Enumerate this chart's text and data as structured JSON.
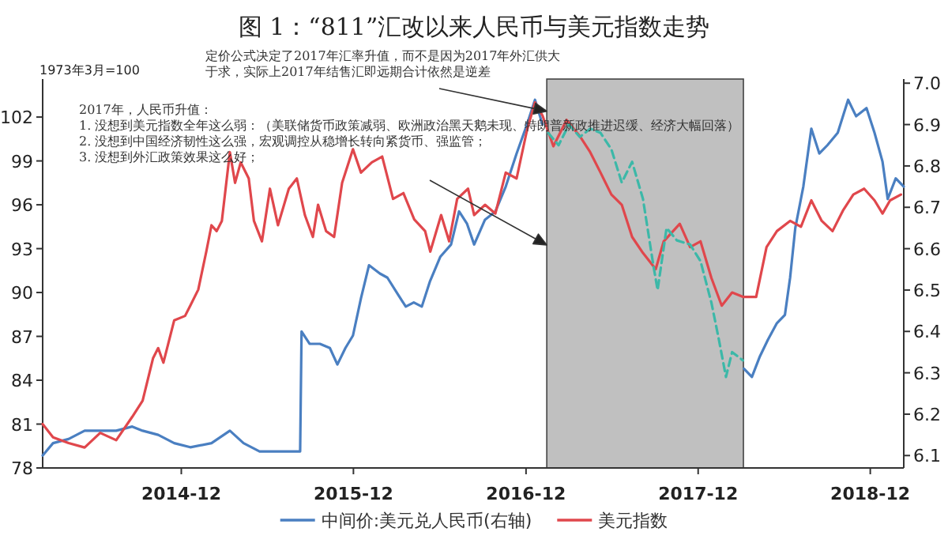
{
  "chart_data": {
    "type": "line",
    "title": "图 1：“811”汇改以来人民币与美元指数走势",
    "ylabel": "1973年3月=100",
    "xlim": [
      "2014-02-10",
      "2019-02-10"
    ],
    "xticks": [
      "2014-12",
      "2015-12",
      "2016-12",
      "2017-12",
      "2018-12"
    ],
    "ylim": [
      78,
      104.6
    ],
    "yticks": [
      78,
      81,
      84,
      87,
      90,
      93,
      96,
      99,
      102
    ],
    "y2lim": [
      6.07,
      7.01
    ],
    "y2ticks": [
      6.1,
      6.2,
      6.3,
      6.4,
      6.5,
      6.6,
      6.7,
      6.8,
      6.9,
      {
        "value": 7,
        "label": "7.0"
      }
    ],
    "legend": "bottom",
    "marker": "none",
    "grid": false,
    "bands": [
      {
        "axis": "x",
        "from": "2017-01-14",
        "to": "2018-03-07",
        "color": "#c0c0c0"
      }
    ],
    "annotations": [
      {
        "text": "定价公式决定了2017年汇率升值，而不是因为2017年外汇供大于求，实际上2017年结售汇即远期合计依然是逆差",
        "x": "2017-01-14",
        "y": 102.4
      },
      "2017年，人民币升值：",
      "1. 没想到美元指数全年这么弱：（美联储货币政策减弱、欧洲政治黑天鹅未现、特朗普新政推进迟缓、经济大幅回落）",
      "2. 没想到中国经济韧性这么强，宏观调控从稳增长转向紧货币、强监管；",
      "3. 没想到外汇政策效果这么好；"
    ],
    "series": [
      {
        "name": "中间价:美元兑人民币(右轴)",
        "color": "#4a7fc1",
        "axis": "y2",
        "line_style": "solid",
        "x": [
          "2014-02-10",
          "2014-03-04",
          "2014-04-06",
          "2014-05-10",
          "2014-06-12",
          "2014-07-16",
          "2014-08-19",
          "2014-09-10",
          "2014-10-13",
          "2014-11-16",
          "2014-12-20",
          "2015-02-03",
          "2015-03-14",
          "2015-04-12",
          "2015-05-16",
          "2015-06-18",
          "2015-08-10",
          "2015-08-13",
          "2015-08-30",
          "2015-09-21",
          "2015-10-12",
          "2015-10-28",
          "2015-11-14",
          "2015-11-30",
          "2015-12-17",
          "2016-01-03",
          "2016-01-26",
          "2016-02-11",
          "2016-03-04",
          "2016-03-21",
          "2016-04-07",
          "2016-04-24",
          "2016-05-11",
          "2016-06-02",
          "2016-06-25",
          "2016-07-12",
          "2016-07-29",
          "2016-08-13",
          "2016-09-05",
          "2016-09-27",
          "2016-10-19",
          "2016-11-11",
          "2016-12-03",
          "2016-12-20",
          "2017-01-05",
          "2017-01-14",
          "2018-03-07",
          "2018-03-08",
          "2018-03-25",
          "2018-04-11",
          "2018-04-28",
          "2018-05-17",
          "2018-06-03",
          "2018-06-14",
          "2018-06-25",
          "2018-07-12",
          "2018-07-29",
          "2018-08-15",
          "2018-09-01",
          "2018-09-23",
          "2018-10-15",
          "2018-11-01",
          "2018-11-23",
          "2018-12-10",
          "2018-12-27",
          "2019-01-07",
          "2019-01-24",
          "2019-02-10"
        ],
        "values": [
          6.1,
          6.13,
          6.14,
          6.16,
          6.16,
          6.16,
          6.17,
          6.16,
          6.15,
          6.13,
          6.12,
          6.13,
          6.16,
          6.13,
          6.11,
          6.11,
          6.11,
          6.4,
          6.37,
          6.37,
          6.36,
          6.32,
          6.36,
          6.39,
          6.48,
          6.56,
          6.54,
          6.53,
          6.49,
          6.46,
          6.47,
          6.46,
          6.52,
          6.58,
          6.61,
          6.69,
          6.66,
          6.61,
          6.67,
          6.69,
          6.75,
          6.83,
          6.9,
          6.96,
          6.9,
          null,
          null,
          6.31,
          6.29,
          6.34,
          6.38,
          6.42,
          6.44,
          6.53,
          6.65,
          6.75,
          6.89,
          6.83,
          6.85,
          6.88,
          6.96,
          6.92,
          6.94,
          6.88,
          6.81,
          6.72,
          6.77,
          6.75
        ]
      },
      {
        "name": "美元指数",
        "color": "#e0474c",
        "axis": "y",
        "line_style": "solid",
        "x": [
          "2014-02-10",
          "2014-03-04",
          "2014-04-06",
          "2014-05-10",
          "2014-06-12",
          "2014-07-16",
          "2014-08-19",
          "2014-09-10",
          "2014-10-02",
          "2014-10-13",
          "2014-10-24",
          "2014-11-16",
          "2014-12-09",
          "2014-12-20",
          "2015-01-06",
          "2015-01-23",
          "2015-02-03",
          "2015-02-14",
          "2015-02-25",
          "2015-03-14",
          "2015-03-25",
          "2015-04-06",
          "2015-04-23",
          "2015-05-04",
          "2015-05-21",
          "2015-06-07",
          "2015-06-24",
          "2015-07-17",
          "2015-08-03",
          "2015-08-20",
          "2015-09-06",
          "2015-09-17",
          "2015-10-04",
          "2015-10-21",
          "2015-11-07",
          "2015-11-30",
          "2015-12-17",
          "2016-01-09",
          "2016-01-31",
          "2016-02-23",
          "2016-03-16",
          "2016-04-08",
          "2016-05-01",
          "2016-05-12",
          "2016-06-04",
          "2016-06-21",
          "2016-07-08",
          "2016-07-31",
          "2016-08-13",
          "2016-09-05",
          "2016-09-27",
          "2016-10-19",
          "2016-11-11",
          "2016-12-03",
          "2016-12-20",
          "2017-01-05",
          "2017-01-28",
          "2017-02-25",
          "2017-03-25",
          "2017-04-16",
          "2017-05-08",
          "2017-05-31",
          "2017-06-22",
          "2017-07-14",
          "2017-08-06",
          "2017-09-02",
          "2017-09-19",
          "2017-10-23",
          "2017-11-14",
          "2017-12-06",
          "2017-12-29",
          "2018-01-20",
          "2018-02-11",
          "2018-03-06",
          "2018-04-03",
          "2018-04-25",
          "2018-05-17",
          "2018-06-14",
          "2018-07-07",
          "2018-07-29",
          "2018-08-20",
          "2018-09-12",
          "2018-10-04",
          "2018-10-26",
          "2018-11-18",
          "2018-12-10",
          "2018-12-27",
          "2019-01-12",
          "2019-02-04"
        ],
        "values": [
          81.0,
          80.1,
          79.7,
          79.4,
          80.4,
          79.9,
          81.5,
          82.6,
          85.5,
          86.2,
          85.2,
          88.1,
          88.4,
          89.1,
          90.2,
          92.8,
          94.6,
          94.2,
          94.9,
          99.6,
          97.5,
          98.9,
          97.8,
          94.9,
          93.5,
          97.1,
          94.6,
          97.1,
          97.8,
          95.3,
          93.8,
          96.0,
          94.2,
          93.8,
          97.5,
          99.8,
          98.2,
          98.9,
          99.3,
          96.4,
          96.8,
          95.0,
          94.2,
          92.8,
          95.3,
          93.5,
          96.4,
          97.1,
          95.3,
          96.0,
          95.4,
          98.2,
          97.8,
          101.1,
          103.0,
          102.1,
          100.0,
          101.8,
          100.7,
          99.6,
          98.2,
          96.7,
          96.0,
          93.8,
          92.7,
          91.6,
          93.5,
          94.7,
          93.1,
          93.5,
          91.0,
          89.1,
          90.0,
          89.7,
          89.7,
          93.1,
          94.2,
          94.9,
          94.5,
          96.3,
          94.9,
          94.2,
          95.6,
          96.7,
          97.1,
          96.3,
          95.4,
          96.3,
          96.7
        ]
      },
      {
        "color": "#3cb8a8",
        "axis": "y2",
        "line_style": "dashed",
        "x": [
          "2017-01-17",
          "2017-02-08",
          "2017-03-02",
          "2017-03-25",
          "2017-04-16",
          "2017-05-08",
          "2017-05-31",
          "2017-06-22",
          "2017-07-14",
          "2017-08-06",
          "2017-08-28",
          "2017-09-06",
          "2017-09-25",
          "2017-10-17",
          "2017-11-14",
          "2017-12-06",
          "2017-12-29",
          "2018-01-14",
          "2018-01-29",
          "2018-02-11",
          "2018-03-06"
        ],
        "values": [
          6.88,
          6.85,
          6.9,
          6.87,
          6.89,
          6.88,
          6.84,
          6.76,
          6.81,
          6.72,
          6.56,
          6.5,
          6.65,
          6.62,
          6.61,
          6.57,
          6.47,
          6.38,
          6.29,
          6.35,
          6.33
        ]
      }
    ]
  }
}
